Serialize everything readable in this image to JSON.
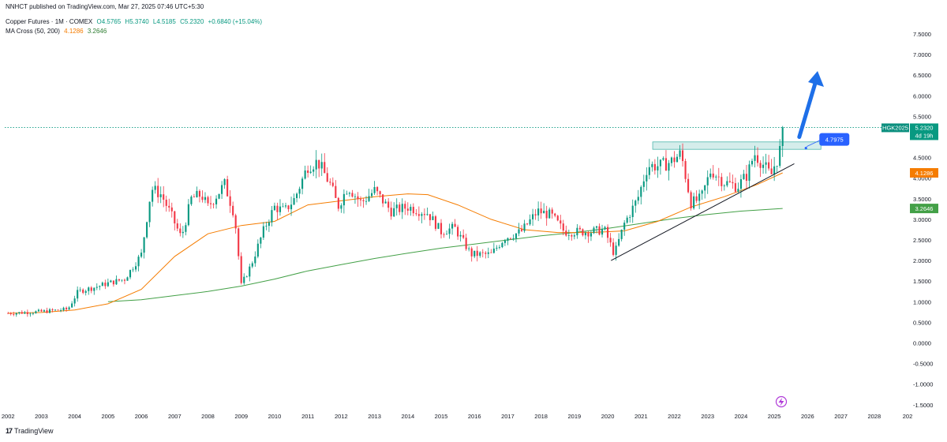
{
  "publisher_line": "NNHCT published on TradingView.com, Mar 27, 2025 07:46 UTC+5:30",
  "legend": {
    "symbol": "Copper Futures · 1M · COMEX",
    "open": "O4.5765",
    "high": "H5.3740",
    "low": "L4.5185",
    "close": "C5.2320",
    "change": "+0.6840 (+15.04%)",
    "ma_name": "MA Cross (50, 200)",
    "ma50": "4.1286",
    "ma200": "3.2646"
  },
  "price_tag": {
    "ticker": "HGK2025",
    "price": "5.2320",
    "time_left": "4d 19h"
  },
  "ma50_tag": "4.1286",
  "ma200_tag": "3.2646",
  "callout_value": "4.7975",
  "branding": "TradingView",
  "colors": {
    "up": "#089981",
    "down": "#f23645",
    "ma50": "#f57c00",
    "ma200": "#43a047",
    "arrow": "#1e6fe8",
    "zone": "#b2dfdb"
  },
  "chart_data": {
    "type": "candlestick",
    "interval": "1M",
    "y_ticks": [
      "7.5000",
      "7.0000",
      "6.5000",
      "6.0000",
      "5.5000",
      "5.0000",
      "4.5000",
      "4.0000",
      "3.5000",
      "3.0000",
      "2.5000",
      "2.0000",
      "1.5000",
      "1.0000",
      "0.5000",
      "0.0000",
      "-0.5000",
      "-1.0000",
      "-1.5000"
    ],
    "x_ticks": [
      "2002",
      "2003",
      "2004",
      "2005",
      "2006",
      "2007",
      "2008",
      "2009",
      "2010",
      "2011",
      "2012",
      "2013",
      "2014",
      "2015",
      "2016",
      "2017",
      "2018",
      "2019",
      "2020",
      "2021",
      "2022",
      "2023",
      "2024",
      "2025",
      "2026",
      "2027",
      "2028",
      "202"
    ],
    "ylim": [
      -1.6,
      7.75
    ],
    "xlim": [
      2001.9,
      2029.0
    ],
    "price_path": [
      [
        2002.0,
        0.72
      ],
      [
        2003.0,
        0.76
      ],
      [
        2003.8,
        0.82
      ],
      [
        2004.1,
        1.25
      ],
      [
        2004.6,
        1.35
      ],
      [
        2005.0,
        1.45
      ],
      [
        2005.5,
        1.55
      ],
      [
        2006.0,
        2.15
      ],
      [
        2006.3,
        3.75
      ],
      [
        2006.6,
        3.6
      ],
      [
        2006.9,
        3.1
      ],
      [
        2007.2,
        2.55
      ],
      [
        2007.5,
        3.5
      ],
      [
        2007.8,
        3.6
      ],
      [
        2008.0,
        3.3
      ],
      [
        2008.5,
        3.85
      ],
      [
        2008.8,
        3.1
      ],
      [
        2009.0,
        1.4
      ],
      [
        2009.3,
        1.9
      ],
      [
        2009.7,
        2.8
      ],
      [
        2010.0,
        3.3
      ],
      [
        2010.3,
        3.2
      ],
      [
        2010.6,
        3.5
      ],
      [
        2011.0,
        4.3
      ],
      [
        2011.3,
        4.4
      ],
      [
        2011.7,
        3.8
      ],
      [
        2011.9,
        3.3
      ],
      [
        2012.2,
        3.8
      ],
      [
        2012.6,
        3.4
      ],
      [
        2013.0,
        3.7
      ],
      [
        2013.5,
        3.2
      ],
      [
        2014.0,
        3.3
      ],
      [
        2014.6,
        3.15
      ],
      [
        2015.0,
        2.7
      ],
      [
        2015.4,
        2.8
      ],
      [
        2015.9,
        2.15
      ],
      [
        2016.5,
        2.15
      ],
      [
        2016.9,
        2.55
      ],
      [
        2017.4,
        2.7
      ],
      [
        2017.9,
        3.2
      ],
      [
        2018.3,
        3.1
      ],
      [
        2018.7,
        2.7
      ],
      [
        2019.0,
        2.7
      ],
      [
        2019.5,
        2.7
      ],
      [
        2019.9,
        2.75
      ],
      [
        2020.2,
        2.15
      ],
      [
        2020.5,
        2.9
      ],
      [
        2020.9,
        3.5
      ],
      [
        2021.2,
        4.3
      ],
      [
        2021.6,
        4.3
      ],
      [
        2021.9,
        4.4
      ],
      [
        2022.2,
        4.6
      ],
      [
        2022.5,
        3.4
      ],
      [
        2022.8,
        3.5
      ],
      [
        2023.1,
        4.2
      ],
      [
        2023.5,
        3.9
      ],
      [
        2023.9,
        3.8
      ],
      [
        2024.2,
        4.1
      ],
      [
        2024.4,
        4.6
      ],
      [
        2024.7,
        4.3
      ],
      [
        2024.9,
        4.05
      ],
      [
        2025.0,
        4.3
      ],
      [
        2025.15,
        4.57
      ],
      [
        2025.25,
        5.23
      ]
    ],
    "ma50": [
      [
        2002.0,
        0.72
      ],
      [
        2003.0,
        0.74
      ],
      [
        2004.0,
        0.8
      ],
      [
        2005.0,
        0.95
      ],
      [
        2006.0,
        1.3
      ],
      [
        2007.0,
        2.1
      ],
      [
        2008.0,
        2.65
      ],
      [
        2009.0,
        2.85
      ],
      [
        2010.0,
        2.95
      ],
      [
        2011.0,
        3.35
      ],
      [
        2012.0,
        3.45
      ],
      [
        2013.0,
        3.55
      ],
      [
        2014.0,
        3.62
      ],
      [
        2014.6,
        3.6
      ],
      [
        2015.5,
        3.35
      ],
      [
        2016.5,
        3.0
      ],
      [
        2017.5,
        2.75
      ],
      [
        2018.5,
        2.68
      ],
      [
        2019.5,
        2.68
      ],
      [
        2020.5,
        2.72
      ],
      [
        2021.5,
        2.95
      ],
      [
        2022.5,
        3.3
      ],
      [
        2023.5,
        3.55
      ],
      [
        2024.5,
        3.85
      ],
      [
        2025.25,
        4.1286
      ]
    ],
    "ma200": [
      [
        2005.0,
        1.0
      ],
      [
        2006.0,
        1.05
      ],
      [
        2007.0,
        1.15
      ],
      [
        2008.0,
        1.25
      ],
      [
        2009.0,
        1.38
      ],
      [
        2010.0,
        1.55
      ],
      [
        2011.0,
        1.75
      ],
      [
        2012.0,
        1.9
      ],
      [
        2013.0,
        2.05
      ],
      [
        2014.0,
        2.18
      ],
      [
        2015.0,
        2.3
      ],
      [
        2016.0,
        2.4
      ],
      [
        2017.0,
        2.5
      ],
      [
        2018.0,
        2.6
      ],
      [
        2019.0,
        2.68
      ],
      [
        2020.0,
        2.78
      ],
      [
        2021.0,
        2.9
      ],
      [
        2022.0,
        3.02
      ],
      [
        2023.0,
        3.12
      ],
      [
        2024.0,
        3.2
      ],
      [
        2025.25,
        3.2646
      ]
    ],
    "trendline": [
      [
        2020.1,
        2.0
      ],
      [
        2025.6,
        4.35
      ]
    ],
    "resistance_zone": {
      "x": [
        2021.35,
        2026.4
      ],
      "y": [
        4.7,
        4.88
      ]
    },
    "last_price": 5.232,
    "projection_arrow": {
      "from": [
        2025.75,
        5.0
      ],
      "to": [
        2026.3,
        6.6
      ]
    },
    "callout_point": [
      2025.95,
      4.73
    ]
  }
}
